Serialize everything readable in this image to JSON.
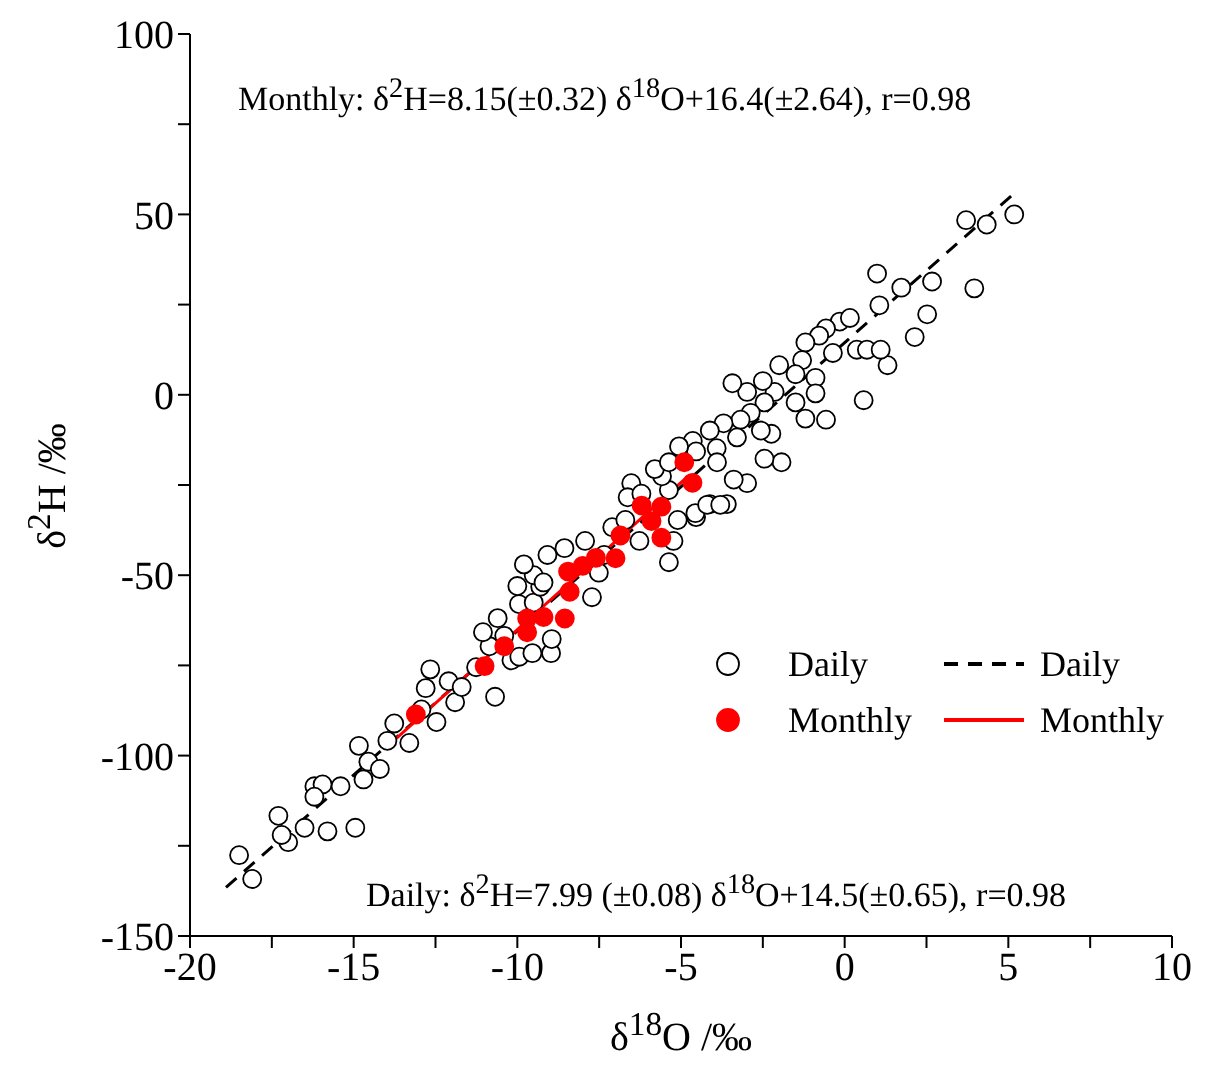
{
  "chart_data": {
    "type": "scatter",
    "xlabel": "δ$^{18}$O /‰",
    "ylabel": "δ$^{2}$H /‰",
    "annotations": [
      "Monthly: δ$^{2}$H=8.15(±0.32) δ$^{18}$O+16.4(±2.64),  r=0.98",
      "Daily: δ$^{2}$H=7.99 (±0.08) δ$^{18}$O+14.5(±0.65),  r=0.98"
    ],
    "xlim": [
      -20,
      10
    ],
    "xticks": [
      -20,
      {
        "value": -17.5,
        "label": null
      },
      -15,
      {
        "value": -12.5,
        "label": null
      },
      -10,
      {
        "value": -7.5,
        "label": null
      },
      -5,
      {
        "value": -2.5,
        "label": null
      },
      0,
      {
        "value": 2.5,
        "label": null
      },
      5,
      {
        "value": 7.5,
        "label": null
      },
      10
    ],
    "ylim": [
      -150,
      100
    ],
    "yticks": [
      -150,
      {
        "value": -125,
        "label": null
      },
      -100,
      {
        "value": -75,
        "label": null
      },
      -50,
      {
        "value": -25,
        "label": null
      },
      0,
      {
        "value": 25,
        "label": null
      },
      50,
      {
        "value": 75,
        "label": null
      },
      100
    ],
    "grid": false,
    "legend": "bottom right",
    "series": [
      {
        "name": "Daily",
        "color": "#000000",
        "marker": "circle",
        "x": [
          5.18,
          4.34,
          3.71,
          3.96,
          2.67,
          2.52,
          2.14,
          0.99,
          1.73,
          1.06,
          1.31,
          0.58,
          0.37,
          0.68,
          1.1,
          -0.15,
          0.16,
          -0.57,
          -0.78,
          -1.2,
          -0.36,
          -1.3,
          -0.89,
          -0.89,
          -0.57,
          -1.2,
          -1.5,
          -2.0,
          -1.5,
          -2.14,
          -2.5,
          -2.98,
          -3.43,
          -2.45,
          -2.87,
          -3.18,
          -2.24,
          -1.93,
          -2.45,
          -2.56,
          -3.29,
          -3.7,
          -4.12,
          -4.64,
          -4.54,
          -5.06,
          -3.91,
          -2.98,
          -3.39,
          -3.6,
          -4.12,
          -3.9,
          -4.54,
          -5.37,
          -5.58,
          -5.8,
          -5.37,
          -6.52,
          -6.63,
          -6.21,
          -18.5,
          -18.1,
          -17.3,
          -17.0,
          -17.2,
          -16.5,
          -15.8,
          -16.2,
          -15.95,
          -16.2,
          -15.4,
          -14.95,
          -14.84,
          -14.7,
          -14.55,
          -14.2,
          -13.97,
          -13.76,
          -13.3,
          -12.93,
          -12.8,
          -12.66,
          -12.47,
          -12.1,
          -11.9,
          -11.7,
          -11.26,
          -10.85,
          -10.68,
          -11.05,
          -10.6,
          -10.18,
          -9.94,
          -10.4,
          -9.95,
          -9.5,
          -9.54,
          -8.97,
          -8.95,
          -9.3,
          -9.08,
          -8.56,
          -7.93,
          -7.72,
          -7.51,
          -7.35,
          -7.1,
          -6.7,
          -6.27,
          -5.37,
          -5.23,
          -5.1,
          -4.56,
          -4.2,
          -3.8,
          -9.5,
          -9.8,
          -9.2,
          -10.0
        ],
        "values": [
          50.0,
          47.2,
          48.4,
          29.5,
          31.4,
          22.3,
          16.0,
          33.6,
          29.7,
          24.8,
          8.2,
          -1.5,
          12.5,
          12.5,
          12.5,
          20.3,
          21.3,
          18.4,
          16.4,
          14.5,
          11.6,
          9.6,
          4.7,
          0.4,
          -6.9,
          -6.6,
          -2.1,
          8.2,
          5.7,
          0.8,
          3.8,
          0.8,
          3.2,
          -2.1,
          -5.0,
          -6.9,
          -10.8,
          -18.7,
          -17.7,
          -9.9,
          -11.8,
          -7.9,
          -9.9,
          -12.8,
          -15.7,
          -14.3,
          -14.8,
          -24.5,
          -23.5,
          -30.3,
          -30.3,
          -18.7,
          -33.9,
          -26.4,
          -22.6,
          -20.6,
          -18.7,
          -24.5,
          -28.4,
          -27.4,
          -127.6,
          -134.2,
          -116.7,
          -124.0,
          -122.0,
          -120.0,
          -121.0,
          -108.5,
          -108.0,
          -111.4,
          -108.5,
          -120.0,
          -97.3,
          -106.6,
          -101.7,
          -103.7,
          -95.9,
          -91.1,
          -96.5,
          -87.2,
          -81.3,
          -76.1,
          -90.7,
          -79.4,
          -85.2,
          -81.0,
          -75.5,
          -69.7,
          -83.7,
          -65.8,
          -61.9,
          -73.6,
          -72.6,
          -66.8,
          -58.0,
          -57.6,
          -71.6,
          -71.6,
          -67.7,
          -53.2,
          -44.4,
          -42.5,
          -40.5,
          -56.1,
          -49.3,
          -44.4,
          -36.7,
          -34.7,
          -40.5,
          -46.4,
          -40.5,
          -34.7,
          -32.8,
          -30.5,
          -30.5,
          -50.0,
          -47.0,
          -52.0,
          -53.0
        ]
      },
      {
        "name": "Monthly",
        "color": "#ff0000",
        "marker": "circle",
        "x": [
          -13.1,
          -11.0,
          -10.4,
          -9.7,
          -9.7,
          -9.2,
          -8.55,
          -8.4,
          -8.45,
          -8.0,
          -7.6,
          -7.0,
          -6.85,
          -6.2,
          -5.9,
          -5.6,
          -5.6,
          -4.9,
          -4.65
        ],
        "values": [
          -88.6,
          -75.2,
          -69.7,
          -62.0,
          -65.8,
          -61.6,
          -62.0,
          -54.6,
          -49.0,
          -47.4,
          -45.2,
          -45.3,
          -39.0,
          -30.7,
          -35.0,
          -39.6,
          -31.0,
          -18.7,
          -24.4
        ]
      },
      {
        "name": "Daily",
        "type": "line",
        "color": "#000000",
        "line_style": "dashed",
        "marker": "none",
        "x": [
          -18.9,
          5.2
        ],
        "values": [
          -136.5,
          56.0
        ]
      },
      {
        "name": "Monthly",
        "type": "line",
        "color": "#ff0000",
        "line_style": "solid",
        "marker": "none",
        "x": [
          -13.9,
          -4.8
        ],
        "values": [
          -96.9,
          -22.7
        ]
      }
    ]
  }
}
